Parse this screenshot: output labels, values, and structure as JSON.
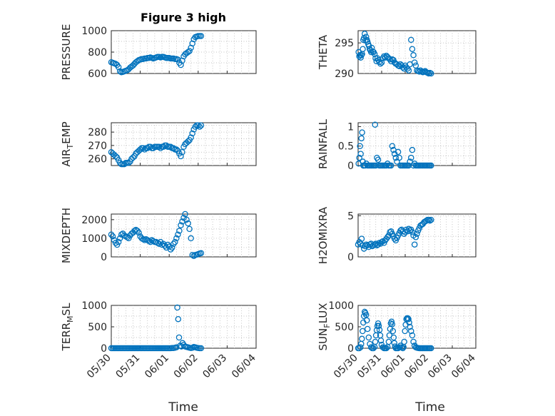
{
  "colors": {
    "marker": "#0072BD",
    "axis": "#262626",
    "grid": "#b0b0b0"
  },
  "figure_title": "Figure 3 high",
  "x_tick_labels": [
    "05/30",
    "05/31",
    "06/01",
    "06/02",
    "06/03",
    "06/04"
  ],
  "x_axis_label": "Time",
  "chart_data": [
    {
      "type": "scatter",
      "title": "Figure 3 high",
      "ylabel": "PRESSURE",
      "ylim": [
        600,
        1000
      ],
      "yticks": [
        600,
        800,
        1000
      ],
      "grid": true,
      "x": [
        0.0,
        0.05,
        0.1,
        0.15,
        0.2,
        0.25,
        0.3,
        0.35,
        0.4,
        0.45,
        0.5,
        0.55,
        0.6,
        0.65,
        0.7,
        0.75,
        0.8,
        0.85,
        0.9,
        0.95,
        1.0,
        1.05,
        1.1,
        1.15,
        1.2,
        1.25,
        1.3,
        1.35,
        1.4,
        1.45,
        1.5,
        1.55,
        1.6,
        1.65,
        1.7,
        1.75,
        1.8,
        1.85,
        1.9,
        1.95,
        2.0,
        2.05,
        2.1,
        2.15,
        2.2,
        2.25,
        2.3,
        2.35,
        2.4,
        2.45,
        2.5,
        2.55,
        2.6,
        2.65,
        2.7,
        2.75,
        2.8,
        2.85,
        2.9,
        2.95,
        3.0,
        3.05,
        3.1
      ],
      "y": [
        705,
        700,
        695,
        690,
        680,
        660,
        620,
        612,
        615,
        620,
        625,
        630,
        640,
        655,
        665,
        675,
        690,
        705,
        715,
        725,
        730,
        735,
        735,
        740,
        740,
        745,
        745,
        750,
        745,
        740,
        745,
        750,
        755,
        755,
        750,
        755,
        755,
        750,
        745,
        745,
        745,
        740,
        740,
        740,
        735,
        735,
        730,
        700,
        680,
        720,
        760,
        780,
        790,
        800,
        810,
        840,
        880,
        920,
        940,
        945,
        950,
        950,
        950
      ]
    },
    {
      "type": "scatter",
      "ylabel": "THETA",
      "ylim": [
        290,
        297
      ],
      "yticks": [
        290,
        295
      ],
      "grid": true,
      "x": [
        0.02,
        0.05,
        0.08,
        0.11,
        0.14,
        0.17,
        0.2,
        0.22,
        0.25,
        0.28,
        0.31,
        0.34,
        0.37,
        0.4,
        0.43,
        0.46,
        0.49,
        0.52,
        0.55,
        0.58,
        0.62,
        0.66,
        0.7,
        0.74,
        0.78,
        0.82,
        0.86,
        0.9,
        0.95,
        1.0,
        1.05,
        1.1,
        1.15,
        1.2,
        1.25,
        1.3,
        1.35,
        1.4,
        1.45,
        1.5,
        1.55,
        1.6,
        1.65,
        1.7,
        1.75,
        1.8,
        1.85,
        1.9,
        1.95,
        2.0,
        2.05,
        2.1,
        2.15,
        2.2,
        2.25,
        2.3,
        2.35,
        2.4,
        2.45,
        2.5,
        2.55,
        2.6,
        2.65,
        2.7,
        2.75,
        2.8,
        2.85,
        2.9,
        2.95,
        3.0,
        3.05,
        3.1
      ],
      "y": [
        293.5,
        292.8,
        293.0,
        292.6,
        293.0,
        293.2,
        294.0,
        295.5,
        295.8,
        296.5,
        295.4,
        296.0,
        295.5,
        295.2,
        294.8,
        294.5,
        294.0,
        293.8,
        293.5,
        294.2,
        293.6,
        293.5,
        293.2,
        292.5,
        292.0,
        292.5,
        292.2,
        291.9,
        291.6,
        291.8,
        292.5,
        292.8,
        292.6,
        292.9,
        292.7,
        292.5,
        292.3,
        292.0,
        292.3,
        292.2,
        291.8,
        291.6,
        291.5,
        291.3,
        291.2,
        291.5,
        291.3,
        291.0,
        290.8,
        291.3,
        291.0,
        290.8,
        290.5,
        291.5,
        295.5,
        294.0,
        293.0,
        291.8,
        291.3,
        290.5,
        290.4,
        290.3,
        290.5,
        290.3,
        290.2,
        290.3,
        290.4,
        290.2,
        290.1,
        290.0,
        290.1,
        290.0
      ]
    },
    {
      "type": "scatter",
      "ylabel": "AIR_TEMP",
      "ylabel_main": "AIR",
      "ylabel_sub": "T",
      "ylabel_rest": "EMP",
      "ylim": [
        255,
        287
      ],
      "yticks": [
        260,
        270,
        280
      ],
      "grid": true,
      "x": [
        0.0,
        0.05,
        0.1,
        0.15,
        0.2,
        0.25,
        0.3,
        0.35,
        0.4,
        0.45,
        0.5,
        0.55,
        0.6,
        0.65,
        0.7,
        0.75,
        0.8,
        0.85,
        0.9,
        0.95,
        1.0,
        1.05,
        1.1,
        1.15,
        1.2,
        1.25,
        1.3,
        1.35,
        1.4,
        1.45,
        1.5,
        1.55,
        1.6,
        1.65,
        1.7,
        1.75,
        1.8,
        1.85,
        1.9,
        1.95,
        2.0,
        2.05,
        2.1,
        2.15,
        2.2,
        2.25,
        2.3,
        2.35,
        2.4,
        2.45,
        2.5,
        2.55,
        2.6,
        2.65,
        2.7,
        2.75,
        2.8,
        2.85,
        2.9,
        2.95,
        3.0,
        3.05,
        3.1
      ],
      "y": [
        265,
        264,
        263,
        262,
        261,
        259,
        257,
        256,
        256,
        256,
        257,
        257,
        257,
        258,
        260,
        261,
        262,
        264,
        265,
        266,
        267,
        268,
        268,
        267,
        268,
        268,
        269,
        269,
        268,
        268,
        269,
        269,
        269,
        269,
        268,
        269,
        269,
        270,
        270,
        269,
        269,
        269,
        268,
        268,
        267,
        267,
        266,
        264,
        262,
        265,
        269,
        271,
        272,
        273,
        274,
        276,
        279,
        282,
        284,
        285,
        285,
        284,
        285
      ]
    },
    {
      "type": "scatter",
      "ylabel": "RAINFALL",
      "ylim": [
        0,
        1.1
      ],
      "yticks": [
        0,
        0.5,
        1
      ],
      "ytick_labels": [
        "0",
        "0.5",
        "1"
      ],
      "grid": true,
      "x": [
        0.02,
        0.05,
        0.08,
        0.11,
        0.14,
        0.17,
        0.2,
        0.22,
        0.25,
        0.3,
        0.35,
        0.4,
        0.45,
        0.5,
        0.55,
        0.6,
        0.65,
        0.7,
        0.72,
        0.75,
        0.8,
        0.85,
        0.9,
        0.95,
        1.0,
        1.05,
        1.1,
        1.15,
        1.2,
        1.25,
        1.3,
        1.35,
        1.4,
        1.45,
        1.5,
        1.55,
        1.6,
        1.65,
        1.7,
        1.75,
        1.8,
        1.85,
        1.9,
        1.95,
        2.0,
        2.05,
        2.1,
        2.15,
        2.2,
        2.25,
        2.3,
        2.35,
        2.4,
        2.45,
        2.5,
        2.55,
        2.6,
        2.65,
        2.7,
        2.75,
        2.8,
        2.85,
        2.9,
        2.95,
        3.0,
        3.05,
        3.1
      ],
      "y": [
        0.05,
        0.2,
        0.5,
        0.3,
        0.7,
        0.85,
        0.1,
        0.0,
        0.0,
        0.0,
        0.05,
        0.0,
        0.0,
        0.0,
        0.0,
        0.0,
        0.0,
        0.0,
        1.05,
        0.0,
        0.2,
        0.15,
        0.0,
        0.0,
        0.0,
        0.0,
        0.0,
        0.0,
        0.0,
        0.05,
        0.0,
        0.0,
        0.0,
        0.5,
        0.4,
        0.3,
        0.2,
        0.1,
        0.35,
        0.2,
        0.0,
        0.0,
        0.0,
        0.0,
        0.0,
        0.0,
        0.0,
        0.0,
        0.1,
        0.2,
        0.4,
        0.0,
        0.05,
        0.0,
        0.0,
        0.0,
        0.0,
        0.0,
        0.0,
        0.0,
        0.0,
        0.0,
        0.0,
        0.0,
        0.0,
        0.0,
        0.0
      ]
    },
    {
      "type": "scatter",
      "ylabel": "MIXDEPTH",
      "ylim": [
        0,
        2300
      ],
      "yticks": [
        0,
        1000,
        2000
      ],
      "grid": true,
      "x": [
        0.0,
        0.05,
        0.1,
        0.15,
        0.2,
        0.25,
        0.3,
        0.35,
        0.4,
        0.45,
        0.5,
        0.55,
        0.6,
        0.65,
        0.7,
        0.75,
        0.8,
        0.85,
        0.9,
        0.95,
        1.0,
        1.05,
        1.1,
        1.15,
        1.2,
        1.25,
        1.3,
        1.35,
        1.4,
        1.45,
        1.5,
        1.55,
        1.6,
        1.65,
        1.7,
        1.75,
        1.8,
        1.85,
        1.9,
        1.95,
        2.0,
        2.05,
        2.1,
        2.15,
        2.2,
        2.25,
        2.3,
        2.35,
        2.4,
        2.45,
        2.5,
        2.55,
        2.6,
        2.65,
        2.7,
        2.75,
        2.8,
        2.85,
        2.9,
        2.95,
        3.0,
        3.05,
        3.1
      ],
      "y": [
        1200,
        1100,
        900,
        750,
        650,
        800,
        1000,
        1200,
        1250,
        1150,
        1100,
        1050,
        1000,
        1150,
        1250,
        1300,
        1400,
        1450,
        1400,
        1300,
        1100,
        1000,
        950,
        900,
        950,
        900,
        850,
        800,
        900,
        850,
        800,
        800,
        750,
        700,
        800,
        650,
        700,
        600,
        500,
        650,
        550,
        400,
        500,
        700,
        800,
        1000,
        1200,
        1400,
        1700,
        1900,
        2100,
        2300,
        2000,
        1800,
        1500,
        1000,
        100,
        50,
        100,
        120,
        150,
        180,
        200
      ]
    },
    {
      "type": "scatter",
      "ylabel": "H2OMIXRA",
      "ylim": [
        0,
        5.2
      ],
      "yticks": [
        0,
        5
      ],
      "grid": true,
      "x": [
        0.0,
        0.05,
        0.1,
        0.15,
        0.2,
        0.25,
        0.3,
        0.35,
        0.4,
        0.45,
        0.5,
        0.55,
        0.6,
        0.65,
        0.7,
        0.75,
        0.8,
        0.85,
        0.9,
        0.95,
        1.0,
        1.05,
        1.1,
        1.15,
        1.2,
        1.25,
        1.3,
        1.35,
        1.4,
        1.45,
        1.5,
        1.55,
        1.6,
        1.65,
        1.7,
        1.75,
        1.8,
        1.85,
        1.9,
        1.95,
        2.0,
        2.05,
        2.1,
        2.15,
        2.2,
        2.25,
        2.3,
        2.35,
        2.4,
        2.45,
        2.5,
        2.55,
        2.6,
        2.65,
        2.7,
        2.75,
        2.8,
        2.85,
        2.9,
        2.95,
        3.0,
        3.05,
        3.1
      ],
      "y": [
        1.5,
        1.8,
        1.6,
        2.2,
        1.4,
        1.0,
        1.3,
        1.5,
        1.4,
        1.2,
        1.5,
        1.6,
        1.3,
        1.4,
        1.5,
        1.6,
        1.4,
        1.5,
        1.7,
        1.6,
        1.8,
        1.9,
        1.7,
        2.0,
        2.2,
        2.4,
        2.6,
        3.0,
        3.1,
        2.8,
        2.5,
        2.2,
        2.0,
        2.3,
        2.6,
        2.9,
        3.2,
        3.3,
        3.1,
        2.8,
        3.0,
        3.3,
        3.1,
        3.4,
        3.2,
        3.3,
        3.0,
        2.6,
        1.5,
        2.4,
        2.8,
        3.2,
        3.5,
        3.8,
        3.9,
        4.0,
        4.2,
        4.3,
        4.4,
        4.5,
        4.5,
        4.4,
        4.5
      ]
    },
    {
      "type": "scatter",
      "ylabel": "TERR_MSL",
      "ylabel_main": "TERR",
      "ylabel_sub": "M",
      "ylabel_rest": "SL",
      "ylim": [
        0,
        1000
      ],
      "yticks": [
        0,
        500,
        1000
      ],
      "grid": true,
      "x": [
        0.0,
        0.05,
        0.1,
        0.15,
        0.2,
        0.25,
        0.3,
        0.35,
        0.4,
        0.45,
        0.5,
        0.55,
        0.6,
        0.65,
        0.7,
        0.75,
        0.8,
        0.85,
        0.9,
        0.95,
        1.0,
        1.05,
        1.1,
        1.15,
        1.2,
        1.25,
        1.3,
        1.35,
        1.4,
        1.45,
        1.5,
        1.55,
        1.6,
        1.65,
        1.7,
        1.75,
        1.8,
        1.85,
        1.9,
        1.95,
        2.0,
        2.05,
        2.1,
        2.15,
        2.2,
        2.25,
        2.28,
        2.31,
        2.34,
        2.38,
        2.42,
        2.46,
        2.5,
        2.55,
        2.6,
        2.65,
        2.7,
        2.75,
        2.8,
        2.85,
        2.9,
        2.95,
        3.0,
        3.05,
        3.1
      ],
      "y": [
        0,
        0,
        0,
        0,
        0,
        0,
        0,
        0,
        0,
        0,
        0,
        0,
        0,
        0,
        0,
        0,
        0,
        0,
        0,
        0,
        0,
        0,
        0,
        0,
        0,
        0,
        0,
        0,
        0,
        0,
        0,
        0,
        0,
        0,
        0,
        0,
        0,
        0,
        0,
        0,
        0,
        0,
        5,
        5,
        10,
        20,
        950,
        680,
        250,
        60,
        40,
        120,
        80,
        40,
        30,
        20,
        10,
        5,
        10,
        30,
        20,
        10,
        5,
        0,
        0
      ]
    },
    {
      "type": "scatter",
      "ylabel": "SUN_FLUX",
      "ylabel_main": "SUN",
      "ylabel_sub": "F",
      "ylabel_rest": "LUX",
      "ylim": [
        0,
        1000
      ],
      "yticks": [
        0,
        500,
        1000
      ],
      "grid": true,
      "x": [
        0.0,
        0.05,
        0.1,
        0.13,
        0.16,
        0.19,
        0.22,
        0.25,
        0.28,
        0.31,
        0.34,
        0.37,
        0.4,
        0.45,
        0.5,
        0.55,
        0.6,
        0.65,
        0.7,
        0.73,
        0.76,
        0.79,
        0.82,
        0.85,
        0.88,
        0.91,
        0.94,
        0.97,
        1.0,
        1.05,
        1.1,
        1.15,
        1.2,
        1.25,
        1.3,
        1.33,
        1.36,
        1.39,
        1.42,
        1.45,
        1.48,
        1.51,
        1.54,
        1.57,
        1.6,
        1.65,
        1.7,
        1.75,
        1.8,
        1.85,
        1.9,
        1.93,
        1.96,
        1.99,
        2.02,
        2.05,
        2.08,
        2.11,
        2.14,
        2.17,
        2.2,
        2.25,
        2.3,
        2.35,
        2.4,
        2.45,
        2.5,
        2.55,
        2.6,
        2.65,
        2.7,
        2.75,
        2.8,
        2.85,
        2.9,
        2.95,
        3.0,
        3.05,
        3.1
      ],
      "y": [
        0,
        0,
        20,
        100,
        220,
        400,
        600,
        750,
        850,
        820,
        780,
        650,
        450,
        250,
        100,
        20,
        0,
        0,
        30,
        150,
        300,
        420,
        520,
        580,
        520,
        430,
        300,
        180,
        80,
        20,
        0,
        0,
        0,
        30,
        150,
        300,
        450,
        580,
        620,
        560,
        400,
        250,
        120,
        40,
        0,
        0,
        0,
        20,
        60,
        20,
        0,
        30,
        150,
        400,
        550,
        680,
        700,
        700,
        680,
        600,
        500,
        400,
        300,
        150,
        60,
        20,
        10,
        5,
        0,
        0,
        0,
        0,
        0,
        0,
        0,
        0,
        0,
        0,
        0
      ]
    }
  ]
}
